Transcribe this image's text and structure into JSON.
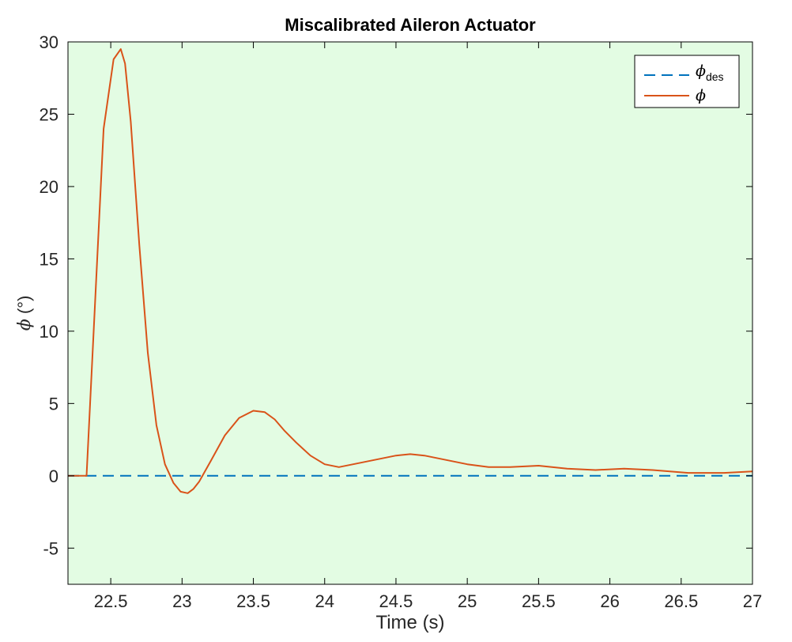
{
  "chart_data": {
    "type": "line",
    "title": "Miscalibrated Aileron Actuator",
    "xlabel": "Time (s)",
    "ylabel_symbol": "ϕ",
    "ylabel_unit": " (°)",
    "xlim": [
      22.2,
      27
    ],
    "ylim": [
      -7.5,
      30
    ],
    "x_ticks": [
      22.5,
      23,
      23.5,
      24,
      24.5,
      25,
      25.5,
      26,
      26.5,
      27
    ],
    "x_tick_labels": [
      "22.5",
      "23",
      "23.5",
      "24",
      "24.5",
      "25",
      "25.5",
      "26",
      "26.5",
      "27"
    ],
    "y_ticks": [
      -5,
      0,
      5,
      10,
      15,
      20,
      25,
      30
    ],
    "y_tick_labels": [
      "-5",
      "0",
      "5",
      "10",
      "15",
      "20",
      "25",
      "30"
    ],
    "plot_background": "#e3fce3",
    "grid": false,
    "legend_position": "top-right",
    "series": [
      {
        "name_symbol": "ϕ",
        "name_subscript": "des",
        "style": "dashed",
        "color": "#0072bd",
        "x": [
          22.2,
          27
        ],
        "y": [
          0,
          0
        ]
      },
      {
        "name_symbol": "ϕ",
        "name_subscript": "",
        "style": "solid",
        "color": "#d95319",
        "x": [
          22.2,
          22.25,
          22.3,
          22.33,
          22.38,
          22.45,
          22.52,
          22.57,
          22.6,
          22.64,
          22.7,
          22.76,
          22.82,
          22.88,
          22.94,
          22.99,
          23.04,
          23.08,
          23.12,
          23.2,
          23.3,
          23.4,
          23.5,
          23.58,
          23.65,
          23.72,
          23.8,
          23.9,
          24.0,
          24.1,
          24.2,
          24.35,
          24.5,
          24.6,
          24.7,
          24.85,
          25.0,
          25.15,
          25.3,
          25.5,
          25.7,
          25.9,
          26.1,
          26.3,
          26.55,
          26.8,
          27.0
        ],
        "y": [
          0,
          0,
          0,
          0,
          10,
          24,
          28.8,
          29.5,
          28.5,
          24.5,
          16.0,
          8.5,
          3.5,
          0.8,
          -0.5,
          -1.1,
          -1.2,
          -0.9,
          -0.4,
          1.0,
          2.8,
          4.0,
          4.5,
          4.4,
          3.9,
          3.1,
          2.3,
          1.4,
          0.8,
          0.6,
          0.8,
          1.1,
          1.4,
          1.5,
          1.4,
          1.1,
          0.8,
          0.6,
          0.6,
          0.7,
          0.5,
          0.4,
          0.5,
          0.4,
          0.2,
          0.2,
          0.3
        ]
      }
    ]
  }
}
